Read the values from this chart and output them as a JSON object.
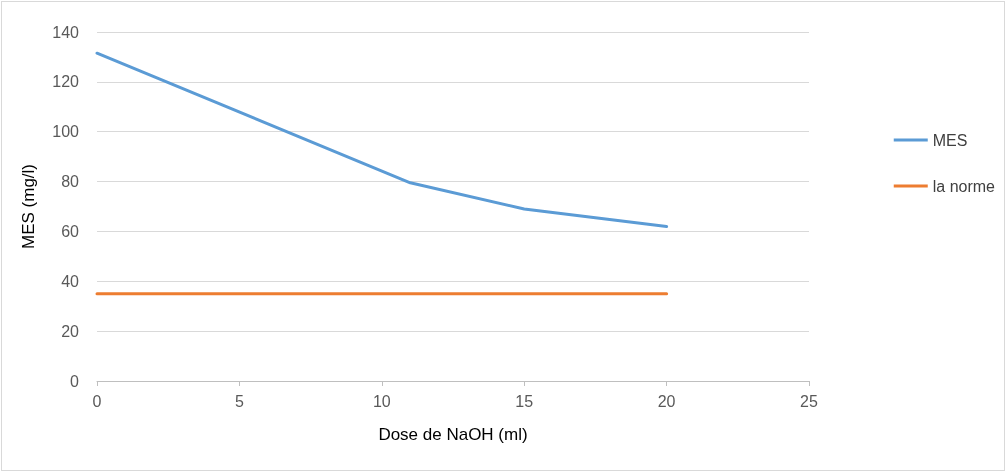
{
  "chart_data": {
    "type": "line",
    "xlabel": "Dose de NaOH (ml)",
    "ylabel": "MES (mg/l)",
    "series": [
      {
        "name": "MES",
        "color": "#5b9bd5",
        "x": [
          0,
          11,
          15,
          20
        ],
        "values": [
          131.5,
          79.5,
          69,
          62
        ]
      },
      {
        "name": "la norme",
        "color": "#ed7d31",
        "x": [
          0,
          20
        ],
        "values": [
          35,
          35
        ]
      }
    ],
    "xlim": [
      0,
      25
    ],
    "xticks": [
      0,
      5,
      10,
      15,
      20,
      25
    ],
    "ylim": [
      0,
      140
    ],
    "yticks": [
      0,
      20,
      40,
      60,
      80,
      100,
      120,
      140
    ],
    "grid": "y",
    "legend": "right",
    "marker": "none",
    "line_style": "solid"
  }
}
